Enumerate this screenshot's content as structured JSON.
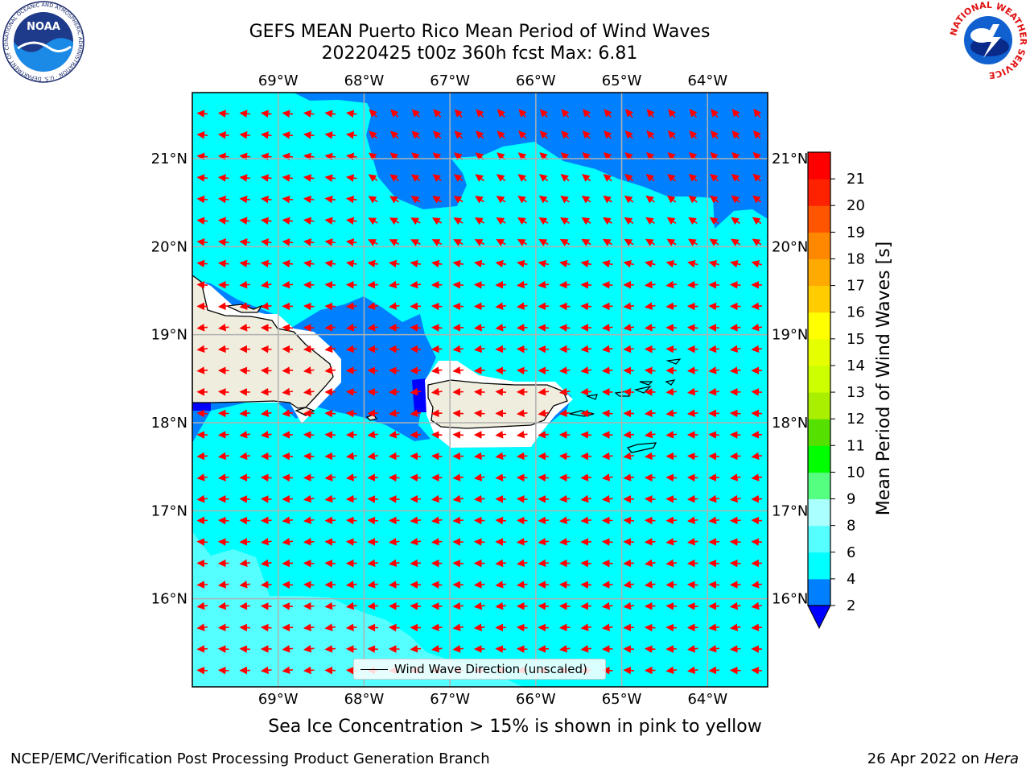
{
  "header": {
    "title_line1": "GEFS MEAN Puerto Rico Mean Period of Wind Waves",
    "title_line2": "20220425 t00z 360h fcst   Max: 6.81"
  },
  "logos": {
    "left": "noaa-logo",
    "left_ring_text": "NATIONAL OCEANIC AND ATMOSPHERIC ADMINISTRATION · U.S. DEPARTMENT OF COMMERCE",
    "left_center_text": "NOAA",
    "right": "nws-logo",
    "right_ring_text": "NATIONAL WEATHER SERVICE"
  },
  "map": {
    "lon_labels": [
      "69°W",
      "68°W",
      "67°W",
      "66°W",
      "65°W",
      "64°W"
    ],
    "lat_labels": [
      "21°N",
      "20°N",
      "19°N",
      "18°N",
      "17°N",
      "16°N"
    ],
    "lon_range": [
      -70.0,
      -63.3
    ],
    "lat_range": [
      15.0,
      21.75
    ],
    "gridlines": true,
    "vector_field": "wind wave direction, predominantly toward west-southwest",
    "legend_label": "Wind Wave Direction (unscaled)",
    "colors": {
      "period_2_4": "#0080ff",
      "period_4_6": "#00ffff",
      "period_6_8": "#55ffff",
      "below_2": "#0000ff",
      "land": "#efedde",
      "arrow": "#ff0000"
    }
  },
  "colorbar": {
    "label": "Mean Period of Wind Waves [s]",
    "ticks": [
      "2",
      "4",
      "6",
      "8",
      "9",
      "10",
      "11",
      "12",
      "13",
      "14",
      "15",
      "16",
      "17",
      "18",
      "19",
      "20",
      "21"
    ],
    "colors": [
      "#0080ff",
      "#00ffff",
      "#55ffff",
      "#aaffff",
      "#55ff80",
      "#00ff00",
      "#55e000",
      "#aaee00",
      "#ccff00",
      "#e6ff00",
      "#ffff00",
      "#ffcc00",
      "#ffaa00",
      "#ff8800",
      "#ff5500",
      "#ff2200",
      "#ff0000"
    ],
    "under_color": "#0000ff"
  },
  "notes": {
    "sea_ice": "Sea Ice Concentration > 15% is shown in pink to yellow"
  },
  "footer": {
    "left": "NCEP/EMC/Verification Post Processing Product Generation Branch",
    "right_prefix": "26 Apr 2022 on ",
    "right_machine": "Hera"
  }
}
